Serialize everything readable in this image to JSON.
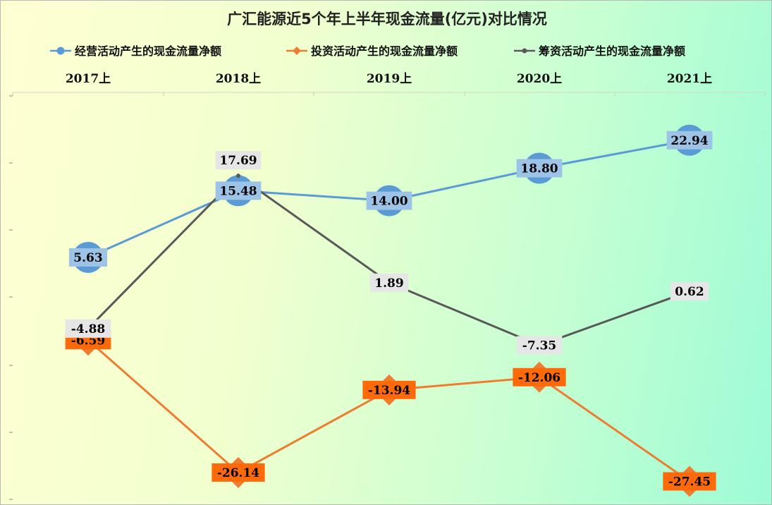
{
  "chart_data": {
    "type": "line",
    "title": "广汇能源近5个年上半年现金流量(亿元)对比情况",
    "categories": [
      "2017上",
      "2018上",
      "2019上",
      "2020上",
      "2021上"
    ],
    "series": [
      {
        "name": "经营活动产生的现金流量净额",
        "values": [
          5.63,
          15.48,
          14.0,
          18.8,
          22.94
        ],
        "labels": [
          "5.63",
          "15.48",
          "14.00",
          "18.80",
          "22.94"
        ],
        "color": "#5b9bd5",
        "label_bg": "#9dc3e6",
        "marker": "circle"
      },
      {
        "name": "投资活动产生的现金流量净额",
        "values": [
          -6.59,
          -26.14,
          -13.94,
          -12.06,
          -27.45
        ],
        "labels": [
          "-6.59",
          "-26.14",
          "-13.94",
          "-12.06",
          "-27.45"
        ],
        "color": "#ed7d31",
        "label_bg": "#fe6a0a",
        "marker": "diamond"
      },
      {
        "name": "筹资活动产生的现金流量净额",
        "values": [
          -4.88,
          17.69,
          1.89,
          -7.35,
          0.62
        ],
        "labels": [
          "-4.88",
          "17.69",
          "1.89",
          "-7.35",
          "0.62"
        ],
        "color": "#595959",
        "label_bg": "#e6e6e6",
        "marker": "dot"
      }
    ],
    "xlabel": "",
    "ylabel": "",
    "ylim": [
      -30,
      30
    ],
    "grid": false,
    "legend_position": "top",
    "category_axis_position": "top"
  }
}
